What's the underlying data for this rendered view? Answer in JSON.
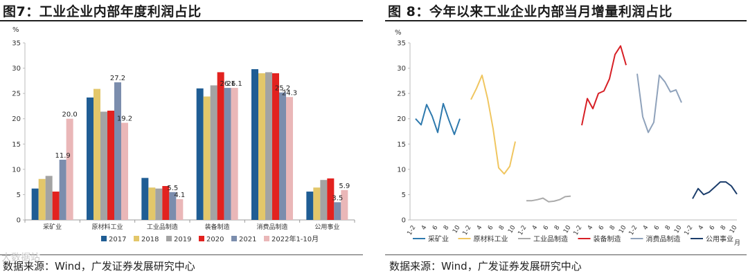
{
  "left": {
    "title": "图7：工业企业内部年度利润占比",
    "source": "数据来源：Wind，广发证券发展研究中心"
  },
  "right": {
    "title": "图 8：今年以来工业企业内部当月增量利润占比",
    "source": "数据来源：Wind，广发证券发展研究中心"
  },
  "watermark": "大数据站",
  "colors": {
    "2017": "#1f5d94",
    "2018": "#e3c76a",
    "2019": "#a3a3a3",
    "2020": "#e2221f",
    "2021": "#7b8dad",
    "2022": "#eab7b8",
    "line_mining": "#2e79ad",
    "line_raw": "#f0c660",
    "line_industrial": "#aaaaaa",
    "line_equipment": "#d71f25",
    "line_consumer": "#8fa2bb",
    "line_utility": "#1b3d6b"
  },
  "chart_data": [
    {
      "type": "bar",
      "ylabel": "%",
      "ylim": [
        0,
        35
      ],
      "yticks": [
        "0",
        "5",
        "10",
        "15",
        "20",
        "25",
        "30",
        "35"
      ],
      "grid": false,
      "legend_position": "bottom",
      "categories": [
        "采矿业",
        "原材料工业",
        "工业品制造",
        "装备制造",
        "消费品制造",
        "公用事业"
      ],
      "series": [
        {
          "name": "2017",
          "values": [
            6.2,
            24.2,
            8.3,
            26.0,
            29.8,
            5.6
          ]
        },
        {
          "name": "2018",
          "values": [
            8.1,
            25.9,
            6.4,
            24.4,
            29.0,
            6.4
          ]
        },
        {
          "name": "2019",
          "values": [
            8.7,
            21.4,
            6.2,
            26.6,
            29.2,
            7.9
          ]
        },
        {
          "name": "2020",
          "values": [
            5.6,
            21.6,
            6.7,
            29.2,
            29.0,
            8.2
          ]
        },
        {
          "name": "2021",
          "values": [
            11.9,
            27.2,
            5.5,
            26.1,
            25.2,
            3.5
          ]
        },
        {
          "name": "2022年1-10月",
          "values": [
            20.0,
            19.2,
            4.1,
            26.1,
            24.3,
            5.9
          ]
        }
      ],
      "data_labels": [
        {
          "category": 0,
          "series": 4,
          "text": "11.9"
        },
        {
          "category": 0,
          "series": 5,
          "text": "20.0"
        },
        {
          "category": 1,
          "series": 4,
          "text": "27.2"
        },
        {
          "category": 1,
          "series": 5,
          "text": "19.2"
        },
        {
          "category": 2,
          "series": 4,
          "text": "5.5"
        },
        {
          "category": 2,
          "series": 5,
          "text": "4.1"
        },
        {
          "category": 3,
          "series": 4,
          "text": "26.1"
        },
        {
          "category": 3,
          "series": 5,
          "text": "26.1"
        },
        {
          "category": 4,
          "series": 4,
          "text": "25.2"
        },
        {
          "category": 4,
          "series": 5,
          "text": "24.3"
        },
        {
          "category": 5,
          "series": 4,
          "text": "3.5"
        },
        {
          "category": 5,
          "series": 5,
          "text": "5.9"
        }
      ]
    },
    {
      "type": "line",
      "ylabel": "%",
      "xunit": "月",
      "ylim": [
        0,
        35
      ],
      "yticks": [
        "0",
        "5",
        "10",
        "15",
        "20",
        "25",
        "30",
        "35"
      ],
      "grid": false,
      "legend_position": "bottom",
      "month_ticks": [
        "1-2",
        "4",
        "6",
        "8",
        "10"
      ],
      "series": [
        {
          "name": "采矿业",
          "values": [
            20.0,
            18.8,
            22.8,
            20.5,
            17.3,
            23.0,
            19.8,
            16.9,
            20.0
          ]
        },
        {
          "name": "原材料工业",
          "values": [
            23.8,
            26.0,
            28.6,
            24.0,
            18.0,
            10.3,
            9.1,
            10.6,
            15.5
          ]
        },
        {
          "name": "工业品制造",
          "values": [
            3.8,
            3.8,
            4.0,
            4.3,
            3.6,
            3.7,
            4.0,
            4.6,
            4.7
          ]
        },
        {
          "name": "装备制造",
          "values": [
            18.7,
            24.0,
            22.0,
            25.0,
            25.5,
            27.9,
            32.7,
            34.4,
            30.6
          ]
        },
        {
          "name": "消费品制造",
          "values": [
            28.9,
            20.4,
            17.3,
            19.3,
            28.6,
            27.3,
            25.3,
            25.7,
            23.2
          ]
        },
        {
          "name": "公用事业",
          "values": [
            4.2,
            6.2,
            5.0,
            5.5,
            6.5,
            7.5,
            7.5,
            6.7,
            5.1
          ]
        }
      ]
    }
  ]
}
